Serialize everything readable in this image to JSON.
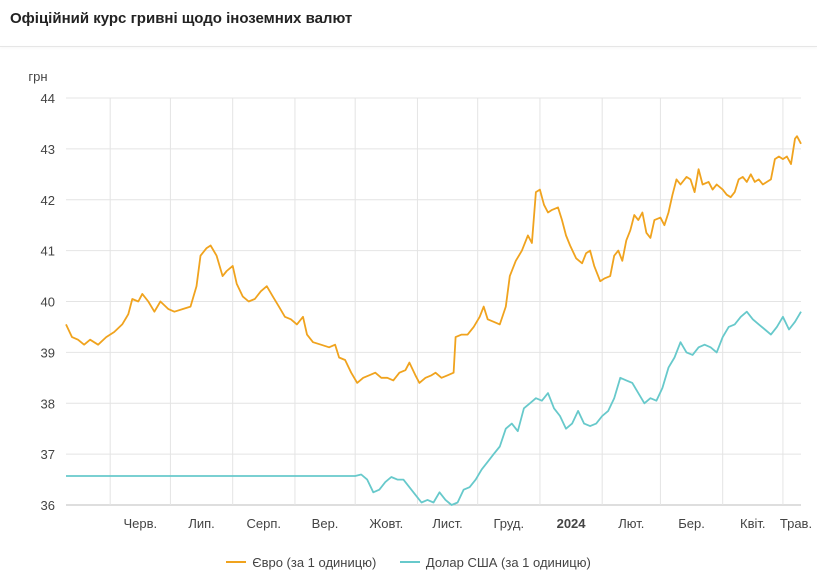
{
  "title": "Офіційний курс гривні щодо іноземних валют",
  "chart_data": {
    "type": "line",
    "ylabel": "грн",
    "ylim": [
      36,
      44
    ],
    "yticks": [
      "36",
      "37",
      "38",
      "39",
      "40",
      "41",
      "42",
      "43",
      "44"
    ],
    "grid": true,
    "legend": "bottom",
    "x_range": [
      "2023-05-10",
      "2024-05-10"
    ],
    "xticks": [
      {
        "label": "Черв.",
        "date": "2023-06-01",
        "bold": false
      },
      {
        "label": "Лип.",
        "date": "2023-07-01",
        "bold": false
      },
      {
        "label": "Серп.",
        "date": "2023-08-01",
        "bold": false
      },
      {
        "label": "Вер.",
        "date": "2023-09-01",
        "bold": false
      },
      {
        "label": "Жовт.",
        "date": "2023-10-01",
        "bold": false
      },
      {
        "label": "Лист.",
        "date": "2023-11-01",
        "bold": false
      },
      {
        "label": "Груд.",
        "date": "2023-12-01",
        "bold": false
      },
      {
        "label": "2024",
        "date": "2024-01-01",
        "bold": true
      },
      {
        "label": "Лют.",
        "date": "2024-02-01",
        "bold": false
      },
      {
        "label": "Бер.",
        "date": "2024-03-01",
        "bold": false
      },
      {
        "label": "Квіт.",
        "date": "2024-04-01",
        "bold": false
      },
      {
        "label": "Трав.",
        "date": "2024-05-01",
        "bold": false
      }
    ],
    "series": [
      {
        "name": "Євро (за 1 одиницю)",
        "color": "#f0a31e",
        "points": [
          [
            "2023-05-10",
            39.55
          ],
          [
            "2023-05-13",
            39.3
          ],
          [
            "2023-05-16",
            39.25
          ],
          [
            "2023-05-19",
            39.15
          ],
          [
            "2023-05-22",
            39.25
          ],
          [
            "2023-05-26",
            39.15
          ],
          [
            "2023-05-30",
            39.3
          ],
          [
            "2023-06-03",
            39.4
          ],
          [
            "2023-06-07",
            39.55
          ],
          [
            "2023-06-10",
            39.75
          ],
          [
            "2023-06-12",
            40.05
          ],
          [
            "2023-06-15",
            40.0
          ],
          [
            "2023-06-17",
            40.15
          ],
          [
            "2023-06-20",
            40.0
          ],
          [
            "2023-06-23",
            39.8
          ],
          [
            "2023-06-26",
            40.0
          ],
          [
            "2023-06-30",
            39.85
          ],
          [
            "2023-07-03",
            39.8
          ],
          [
            "2023-07-07",
            39.85
          ],
          [
            "2023-07-11",
            39.9
          ],
          [
            "2023-07-14",
            40.3
          ],
          [
            "2023-07-16",
            40.9
          ],
          [
            "2023-07-19",
            41.05
          ],
          [
            "2023-07-21",
            41.1
          ],
          [
            "2023-07-24",
            40.9
          ],
          [
            "2023-07-27",
            40.5
          ],
          [
            "2023-07-29",
            40.6
          ],
          [
            "2023-08-01",
            40.7
          ],
          [
            "2023-08-03",
            40.35
          ],
          [
            "2023-08-06",
            40.1
          ],
          [
            "2023-08-09",
            40.0
          ],
          [
            "2023-08-12",
            40.05
          ],
          [
            "2023-08-15",
            40.2
          ],
          [
            "2023-08-18",
            40.3
          ],
          [
            "2023-08-21",
            40.1
          ],
          [
            "2023-08-24",
            39.9
          ],
          [
            "2023-08-27",
            39.7
          ],
          [
            "2023-08-30",
            39.65
          ],
          [
            "2023-09-02",
            39.55
          ],
          [
            "2023-09-05",
            39.7
          ],
          [
            "2023-09-07",
            39.35
          ],
          [
            "2023-09-10",
            39.2
          ],
          [
            "2023-09-14",
            39.15
          ],
          [
            "2023-09-18",
            39.1
          ],
          [
            "2023-09-21",
            39.15
          ],
          [
            "2023-09-23",
            38.9
          ],
          [
            "2023-09-26",
            38.85
          ],
          [
            "2023-09-29",
            38.6
          ],
          [
            "2023-10-02",
            38.4
          ],
          [
            "2023-10-05",
            38.5
          ],
          [
            "2023-10-08",
            38.55
          ],
          [
            "2023-10-11",
            38.6
          ],
          [
            "2023-10-14",
            38.5
          ],
          [
            "2023-10-17",
            38.5
          ],
          [
            "2023-10-20",
            38.45
          ],
          [
            "2023-10-23",
            38.6
          ],
          [
            "2023-10-26",
            38.65
          ],
          [
            "2023-10-28",
            38.8
          ],
          [
            "2023-10-31",
            38.55
          ],
          [
            "2023-11-02",
            38.4
          ],
          [
            "2023-11-05",
            38.5
          ],
          [
            "2023-11-08",
            38.55
          ],
          [
            "2023-11-10",
            38.6
          ],
          [
            "2023-11-13",
            38.5
          ],
          [
            "2023-11-16",
            38.55
          ],
          [
            "2023-11-19",
            38.6
          ],
          [
            "2023-11-20",
            39.3
          ],
          [
            "2023-11-23",
            39.35
          ],
          [
            "2023-11-26",
            39.35
          ],
          [
            "2023-11-29",
            39.5
          ],
          [
            "2023-12-02",
            39.7
          ],
          [
            "2023-12-04",
            39.9
          ],
          [
            "2023-12-06",
            39.65
          ],
          [
            "2023-12-09",
            39.6
          ],
          [
            "2023-12-12",
            39.55
          ],
          [
            "2023-12-15",
            39.9
          ],
          [
            "2023-12-17",
            40.5
          ],
          [
            "2023-12-20",
            40.8
          ],
          [
            "2023-12-23",
            41.0
          ],
          [
            "2023-12-26",
            41.3
          ],
          [
            "2023-12-28",
            41.15
          ],
          [
            "2023-12-30",
            42.15
          ],
          [
            "2024-01-01",
            42.2
          ],
          [
            "2024-01-03",
            41.9
          ],
          [
            "2024-01-05",
            41.75
          ],
          [
            "2024-01-07",
            41.8
          ],
          [
            "2024-01-10",
            41.85
          ],
          [
            "2024-01-12",
            41.6
          ],
          [
            "2024-01-14",
            41.3
          ],
          [
            "2024-01-16",
            41.1
          ],
          [
            "2024-01-19",
            40.85
          ],
          [
            "2024-01-22",
            40.75
          ],
          [
            "2024-01-24",
            40.95
          ],
          [
            "2024-01-26",
            41.0
          ],
          [
            "2024-01-28",
            40.7
          ],
          [
            "2024-01-31",
            40.4
          ],
          [
            "2024-02-02",
            40.45
          ],
          [
            "2024-02-05",
            40.5
          ],
          [
            "2024-02-07",
            40.9
          ],
          [
            "2024-02-09",
            41.0
          ],
          [
            "2024-02-11",
            40.8
          ],
          [
            "2024-02-13",
            41.2
          ],
          [
            "2024-02-15",
            41.4
          ],
          [
            "2024-02-17",
            41.7
          ],
          [
            "2024-02-19",
            41.6
          ],
          [
            "2024-02-21",
            41.75
          ],
          [
            "2024-02-23",
            41.35
          ],
          [
            "2024-02-25",
            41.25
          ],
          [
            "2024-02-27",
            41.6
          ],
          [
            "2024-03-01",
            41.65
          ],
          [
            "2024-03-03",
            41.5
          ],
          [
            "2024-03-05",
            41.75
          ],
          [
            "2024-03-07",
            42.1
          ],
          [
            "2024-03-09",
            42.4
          ],
          [
            "2024-03-11",
            42.3
          ],
          [
            "2024-03-14",
            42.45
          ],
          [
            "2024-03-16",
            42.4
          ],
          [
            "2024-03-18",
            42.15
          ],
          [
            "2024-03-20",
            42.6
          ],
          [
            "2024-03-22",
            42.3
          ],
          [
            "2024-03-25",
            42.35
          ],
          [
            "2024-03-27",
            42.2
          ],
          [
            "2024-03-29",
            42.3
          ],
          [
            "2024-04-01",
            42.2
          ],
          [
            "2024-04-03",
            42.1
          ],
          [
            "2024-04-05",
            42.05
          ],
          [
            "2024-04-07",
            42.15
          ],
          [
            "2024-04-09",
            42.4
          ],
          [
            "2024-04-11",
            42.45
          ],
          [
            "2024-04-13",
            42.35
          ],
          [
            "2024-04-15",
            42.5
          ],
          [
            "2024-04-17",
            42.35
          ],
          [
            "2024-04-19",
            42.4
          ],
          [
            "2024-04-21",
            42.3
          ],
          [
            "2024-04-23",
            42.35
          ],
          [
            "2024-04-25",
            42.4
          ],
          [
            "2024-04-27",
            42.8
          ],
          [
            "2024-04-29",
            42.85
          ],
          [
            "2024-05-01",
            42.8
          ],
          [
            "2024-05-03",
            42.85
          ],
          [
            "2024-05-05",
            42.7
          ],
          [
            "2024-05-07",
            43.2
          ],
          [
            "2024-05-08",
            43.25
          ],
          [
            "2024-05-10",
            43.1
          ]
        ]
      },
      {
        "name": "Долар США (за 1 одиницю)",
        "color": "#67c9cb",
        "points": [
          [
            "2023-05-10",
            36.57
          ],
          [
            "2023-06-01",
            36.57
          ],
          [
            "2023-07-01",
            36.57
          ],
          [
            "2023-08-01",
            36.57
          ],
          [
            "2023-09-01",
            36.57
          ],
          [
            "2023-10-01",
            36.57
          ],
          [
            "2023-10-04",
            36.6
          ],
          [
            "2023-10-07",
            36.5
          ],
          [
            "2023-10-10",
            36.25
          ],
          [
            "2023-10-13",
            36.3
          ],
          [
            "2023-10-16",
            36.45
          ],
          [
            "2023-10-19",
            36.55
          ],
          [
            "2023-10-22",
            36.5
          ],
          [
            "2023-10-25",
            36.5
          ],
          [
            "2023-10-28",
            36.35
          ],
          [
            "2023-10-31",
            36.2
          ],
          [
            "2023-11-03",
            36.05
          ],
          [
            "2023-11-06",
            36.1
          ],
          [
            "2023-11-09",
            36.05
          ],
          [
            "2023-11-12",
            36.25
          ],
          [
            "2023-11-15",
            36.1
          ],
          [
            "2023-11-18",
            36.0
          ],
          [
            "2023-11-21",
            36.05
          ],
          [
            "2023-11-24",
            36.3
          ],
          [
            "2023-11-27",
            36.35
          ],
          [
            "2023-11-30",
            36.5
          ],
          [
            "2023-12-03",
            36.7
          ],
          [
            "2023-12-06",
            36.85
          ],
          [
            "2023-12-09",
            37.0
          ],
          [
            "2023-12-12",
            37.15
          ],
          [
            "2023-12-15",
            37.5
          ],
          [
            "2023-12-18",
            37.6
          ],
          [
            "2023-12-21",
            37.45
          ],
          [
            "2023-12-24",
            37.9
          ],
          [
            "2023-12-27",
            38.0
          ],
          [
            "2023-12-30",
            38.1
          ],
          [
            "2024-01-02",
            38.05
          ],
          [
            "2024-01-05",
            38.2
          ],
          [
            "2024-01-08",
            37.9
          ],
          [
            "2024-01-11",
            37.75
          ],
          [
            "2024-01-14",
            37.5
          ],
          [
            "2024-01-17",
            37.6
          ],
          [
            "2024-01-20",
            37.85
          ],
          [
            "2024-01-23",
            37.6
          ],
          [
            "2024-01-26",
            37.55
          ],
          [
            "2024-01-29",
            37.6
          ],
          [
            "2024-02-01",
            37.75
          ],
          [
            "2024-02-04",
            37.85
          ],
          [
            "2024-02-07",
            38.1
          ],
          [
            "2024-02-10",
            38.5
          ],
          [
            "2024-02-13",
            38.45
          ],
          [
            "2024-02-16",
            38.4
          ],
          [
            "2024-02-19",
            38.2
          ],
          [
            "2024-02-22",
            38.0
          ],
          [
            "2024-02-25",
            38.1
          ],
          [
            "2024-02-28",
            38.05
          ],
          [
            "2024-03-02",
            38.3
          ],
          [
            "2024-03-05",
            38.7
          ],
          [
            "2024-03-08",
            38.9
          ],
          [
            "2024-03-11",
            39.2
          ],
          [
            "2024-03-14",
            39.0
          ],
          [
            "2024-03-17",
            38.95
          ],
          [
            "2024-03-20",
            39.1
          ],
          [
            "2024-03-23",
            39.15
          ],
          [
            "2024-03-26",
            39.1
          ],
          [
            "2024-03-29",
            39.0
          ],
          [
            "2024-04-01",
            39.3
          ],
          [
            "2024-04-04",
            39.5
          ],
          [
            "2024-04-07",
            39.55
          ],
          [
            "2024-04-10",
            39.7
          ],
          [
            "2024-04-13",
            39.8
          ],
          [
            "2024-04-16",
            39.65
          ],
          [
            "2024-04-19",
            39.55
          ],
          [
            "2024-04-22",
            39.45
          ],
          [
            "2024-04-25",
            39.35
          ],
          [
            "2024-04-28",
            39.5
          ],
          [
            "2024-05-01",
            39.7
          ],
          [
            "2024-05-04",
            39.45
          ],
          [
            "2024-05-07",
            39.6
          ],
          [
            "2024-05-10",
            39.8
          ]
        ]
      }
    ]
  }
}
